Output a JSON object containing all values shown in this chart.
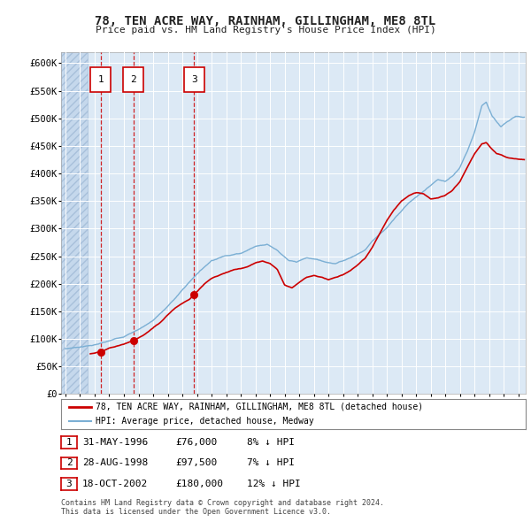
{
  "title": "78, TEN ACRE WAY, RAINHAM, GILLINGHAM, ME8 8TL",
  "subtitle": "Price paid vs. HM Land Registry's House Price Index (HPI)",
  "plot_bg_color": "#dce9f5",
  "grid_color": "#ffffff",
  "ylim": [
    0,
    620000
  ],
  "yticks": [
    0,
    50000,
    100000,
    150000,
    200000,
    250000,
    300000,
    350000,
    400000,
    450000,
    500000,
    550000,
    600000
  ],
  "ytick_labels": [
    "£0",
    "£50K",
    "£100K",
    "£150K",
    "£200K",
    "£250K",
    "£300K",
    "£350K",
    "£400K",
    "£450K",
    "£500K",
    "£550K",
    "£600K"
  ],
  "sale_points": [
    {
      "date_num": 1996.42,
      "price": 76000,
      "label": "1"
    },
    {
      "date_num": 1998.66,
      "price": 97500,
      "label": "2"
    },
    {
      "date_num": 2002.8,
      "price": 180000,
      "label": "3"
    }
  ],
  "legend_line1": "78, TEN ACRE WAY, RAINHAM, GILLINGHAM, ME8 8TL (detached house)",
  "legend_line2": "HPI: Average price, detached house, Medway",
  "table_data": [
    {
      "num": "1",
      "date": "31-MAY-1996",
      "price": "£76,000",
      "note": "8% ↓ HPI"
    },
    {
      "num": "2",
      "date": "28-AUG-1998",
      "price": "£97,500",
      "note": "7% ↓ HPI"
    },
    {
      "num": "3",
      "date": "18-OCT-2002",
      "price": "£180,000",
      "note": "12% ↓ HPI"
    }
  ],
  "footer": "Contains HM Land Registry data © Crown copyright and database right 2024.\nThis data is licensed under the Open Government Licence v3.0.",
  "red_line_color": "#cc0000",
  "blue_line_color": "#7bafd4",
  "xlim_start": 1993.7,
  "xlim_end": 2025.5
}
